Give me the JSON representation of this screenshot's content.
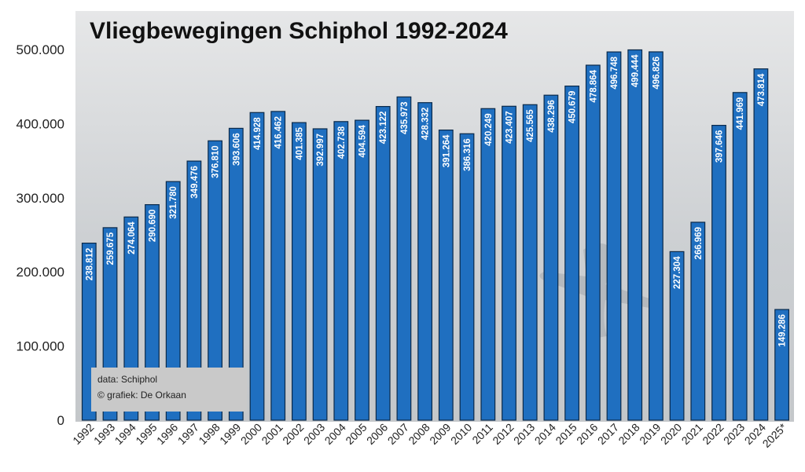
{
  "chart_data": {
    "type": "bar",
    "title": "Vliegbewegingen Schiphol 1992-2024",
    "xlabel": "",
    "ylabel": "",
    "ylim": [
      0,
      500000
    ],
    "yticks": [
      0,
      100000,
      200000,
      300000,
      400000,
      500000
    ],
    "ytick_labels": [
      "0",
      "100.000",
      "200.000",
      "300.000",
      "400.000",
      "500.000"
    ],
    "categories": [
      "1992",
      "1993",
      "1994",
      "1995",
      "1996",
      "1997",
      "1998",
      "1999",
      "2000",
      "2001",
      "2002",
      "2003",
      "2004",
      "2005",
      "2006",
      "2007",
      "2008",
      "2009",
      "2010",
      "2011",
      "2012",
      "2013",
      "2014",
      "2015",
      "2016",
      "2017",
      "2018",
      "2019",
      "2020",
      "2021",
      "2022",
      "2023",
      "2024",
      "2025*"
    ],
    "values": [
      238812,
      259675,
      274064,
      290690,
      321780,
      349476,
      376810,
      393606,
      414928,
      416462,
      401385,
      392997,
      402738,
      404594,
      423122,
      435973,
      428332,
      391264,
      386316,
      420249,
      423407,
      425565,
      438296,
      450679,
      478864,
      496748,
      499444,
      496826,
      227304,
      266969,
      397646,
      441969,
      473814,
      149286
    ],
    "value_labels": [
      "238.812",
      "259.675",
      "274.064",
      "290.690",
      "321.780",
      "349.476",
      "376.810",
      "393.606",
      "414.928",
      "416.462",
      "401.385",
      "392.997",
      "402.738",
      "404.594",
      "423.122",
      "435.973",
      "428.332",
      "391.264",
      "386.316",
      "420.249",
      "423.407",
      "425.565",
      "438.296",
      "450.679",
      "478.864",
      "496.748",
      "499.444",
      "496.826",
      "227.304",
      "266.969",
      "397.646",
      "441.969",
      "473.814",
      "149.286"
    ],
    "grid": false,
    "bar_color": "#1f6fc0",
    "background_color": "#cfd2d5",
    "annotation": {
      "source": "data: Schiphol",
      "credit": "© grafiek: De Orkaan"
    }
  }
}
